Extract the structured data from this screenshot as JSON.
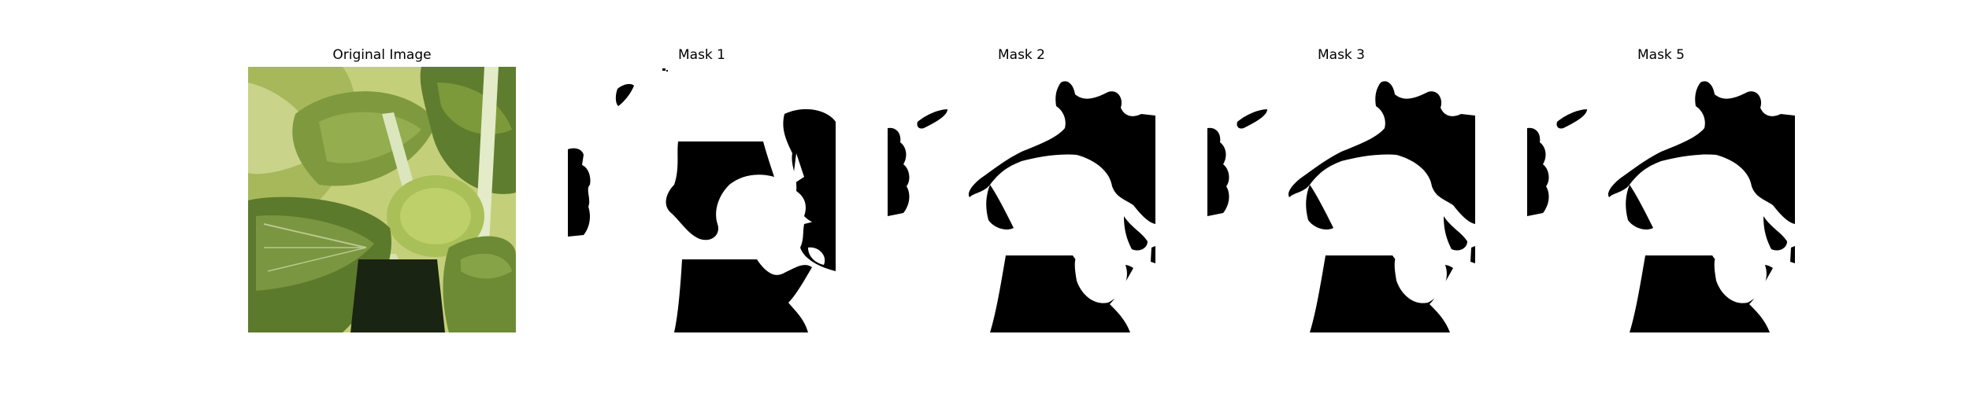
{
  "figure": {
    "panels": [
      {
        "key": "original",
        "title": "Original Image",
        "kind": "photo"
      },
      {
        "key": "mask1",
        "title": "Mask 1",
        "kind": "binary-mask"
      },
      {
        "key": "mask2",
        "title": "Mask 2",
        "kind": "binary-mask"
      },
      {
        "key": "mask3",
        "title": "Mask 3",
        "kind": "binary-mask"
      },
      {
        "key": "mask5",
        "title": "Mask 5",
        "kind": "binary-mask"
      }
    ]
  },
  "colors": {
    "background": "#ffffff",
    "mask_foreground": "#000000",
    "mask_background": "#ffffff",
    "leaf_light": "#b8c96a",
    "leaf_mid": "#8ea34a",
    "leaf_dark": "#4f6a2a",
    "stem": "#dfe8c4",
    "shadow": "#1a2412"
  }
}
